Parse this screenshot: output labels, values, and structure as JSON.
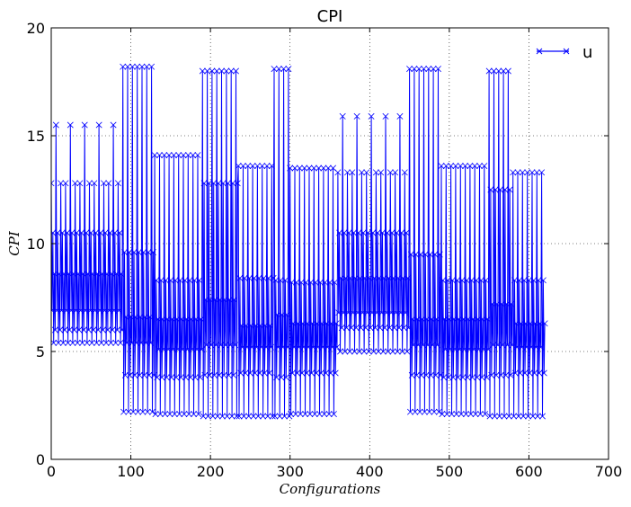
{
  "chart_data": {
    "type": "line",
    "title": "CPI",
    "xlabel": "Configurations",
    "ylabel": "CPI",
    "xlim": [
      0,
      700
    ],
    "ylim": [
      0,
      20
    ],
    "xticks": [
      0,
      100,
      200,
      300,
      400,
      500,
      600,
      700
    ],
    "yticks": [
      0,
      5,
      10,
      15,
      20
    ],
    "grid": true,
    "legend_position": "top-right",
    "series": [
      {
        "name": "u",
        "color": "#0000ff",
        "marker": "x",
        "blocks": [
          {
            "x_start": 0,
            "x_end": 90,
            "period": 6,
            "values": [
              12.8,
              6.9,
              10.5,
              5.4,
              8.6,
              6.0
            ],
            "spike_every": 3,
            "spike_value": 15.5
          },
          {
            "x_start": 90,
            "x_end": 130,
            "period": 6,
            "values": [
              18.2,
              2.2,
              9.6,
              3.9,
              6.6,
              5.4
            ]
          },
          {
            "x_start": 130,
            "x_end": 190,
            "period": 6,
            "values": [
              14.1,
              2.1,
              8.3,
              3.8,
              6.5,
              5.1
            ]
          },
          {
            "x_start": 190,
            "x_end": 235,
            "period": 6,
            "values": [
              18.0,
              2.0,
              12.8,
              3.9,
              7.4,
              5.3
            ]
          },
          {
            "x_start": 235,
            "x_end": 280,
            "period": 6,
            "values": [
              13.6,
              2.0,
              8.4,
              4.0,
              6.2,
              5.2
            ]
          },
          {
            "x_start": 280,
            "x_end": 300,
            "period": 6,
            "values": [
              18.1,
              2.0,
              8.3,
              3.8,
              6.7,
              5.2
            ]
          },
          {
            "x_start": 300,
            "x_end": 360,
            "period": 6,
            "values": [
              13.5,
              2.1,
              8.2,
              4.0,
              6.3,
              5.2
            ]
          },
          {
            "x_start": 360,
            "x_end": 450,
            "period": 6,
            "values": [
              13.3,
              6.8,
              10.5,
              5.0,
              8.4,
              6.1
            ],
            "spike_every": 3,
            "spike_value": 15.9
          },
          {
            "x_start": 450,
            "x_end": 490,
            "period": 6,
            "values": [
              18.1,
              2.2,
              9.5,
              3.9,
              6.5,
              5.3
            ]
          },
          {
            "x_start": 490,
            "x_end": 550,
            "period": 6,
            "values": [
              13.6,
              2.1,
              8.3,
              3.8,
              6.5,
              5.1
            ]
          },
          {
            "x_start": 550,
            "x_end": 580,
            "period": 6,
            "values": [
              18.0,
              2.0,
              12.5,
              3.9,
              7.2,
              5.3
            ]
          },
          {
            "x_start": 580,
            "x_end": 621,
            "period": 6,
            "values": [
              13.3,
              2.0,
              8.3,
              4.0,
              6.3,
              5.2
            ]
          }
        ]
      }
    ]
  }
}
